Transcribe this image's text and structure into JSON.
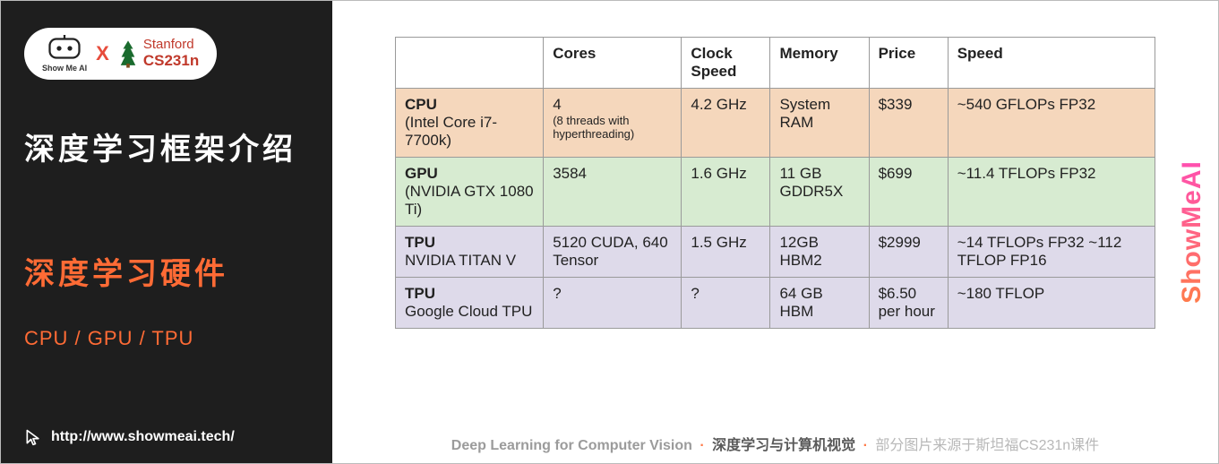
{
  "sidebar": {
    "logo_sub": "Show Me AI",
    "stanford_l1": "Stanford",
    "stanford_l2": "CS231n",
    "x": "X",
    "title": "深度学习框架介绍",
    "subtitle": "深度学习硬件",
    "chips": "CPU / GPU / TPU",
    "url": "http://www.showmeai.tech/"
  },
  "table": {
    "headers": [
      "",
      "Cores",
      "Clock Speed",
      "Memory",
      "Price",
      "Speed"
    ],
    "rows": [
      {
        "class": "row-cpu",
        "label_head": "CPU",
        "label_sub": "(Intel Core i7-7700k)",
        "cores_main": "4",
        "cores_sub": "(8 threads with hyperthreading)",
        "clock": "4.2 GHz",
        "memory": "System RAM",
        "price": "$339",
        "speed": "~540 GFLOPs FP32"
      },
      {
        "class": "row-gpu",
        "label_head": "GPU",
        "label_sub": "(NVIDIA GTX 1080 Ti)",
        "cores_main": "3584",
        "cores_sub": "",
        "clock": "1.6 GHz",
        "memory": "11 GB GDDR5X",
        "price": "$699",
        "speed": "~11.4 TFLOPs FP32"
      },
      {
        "class": "row-tpu",
        "label_head": "TPU",
        "label_sub": "NVIDIA TITAN V",
        "cores_main": "5120 CUDA, 640 Tensor",
        "cores_sub": "",
        "clock": "1.5 GHz",
        "memory": "12GB HBM2",
        "price": "$2999",
        "speed": "~14 TFLOPs FP32 ~112 TFLOP FP16"
      },
      {
        "class": "row-tpu",
        "label_head": "TPU",
        "label_sub": "Google Cloud TPU",
        "cores_main": "?",
        "cores_sub": "",
        "clock": "?",
        "memory": "64 GB HBM",
        "price": "$6.50 per hour",
        "speed": "~180 TFLOP"
      }
    ]
  },
  "watermark": "ShowMeAI",
  "caption": {
    "p1": "Deep Learning for Computer Vision",
    "p2": "深度学习与计算机视觉",
    "p3": "部分图片来源于斯坦福CS231n课件",
    "dot": "·"
  },
  "colors": {
    "sidebar_bg": "#1e1e1e",
    "accent": "#ff6b35",
    "row_cpu": "#f5d7bc",
    "row_gpu": "#d7ebd1",
    "row_tpu": "#dedaea",
    "border": "#9a9a9a"
  }
}
